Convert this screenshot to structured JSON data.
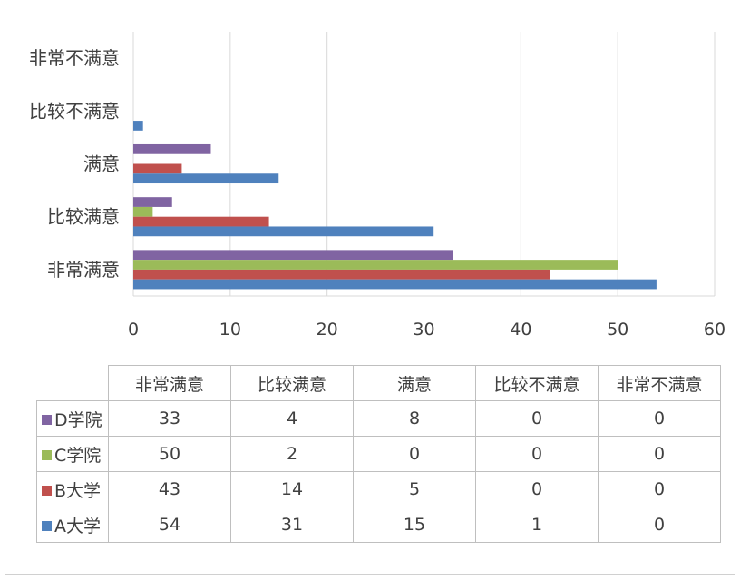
{
  "chart_data": {
    "type": "bar",
    "orientation": "horizontal",
    "categories": [
      "非常满意",
      "比较满意",
      "满意",
      "比较不满意",
      "非常不满意"
    ],
    "series": [
      {
        "name": "D学院",
        "color": "#8064a2",
        "values": [
          33,
          4,
          8,
          0,
          0
        ]
      },
      {
        "name": "C学院",
        "color": "#9bbb59",
        "values": [
          50,
          2,
          0,
          0,
          0
        ]
      },
      {
        "name": "B大学",
        "color": "#c0504d",
        "values": [
          43,
          14,
          5,
          0,
          0
        ]
      },
      {
        "name": "A大学",
        "color": "#4f81bd",
        "values": [
          54,
          31,
          15,
          1,
          0
        ]
      }
    ],
    "xlim": [
      0,
      60
    ],
    "x_ticks": [
      "0",
      "10",
      "20",
      "30",
      "40",
      "50",
      "60"
    ],
    "grid": true,
    "legend": "data-table"
  }
}
